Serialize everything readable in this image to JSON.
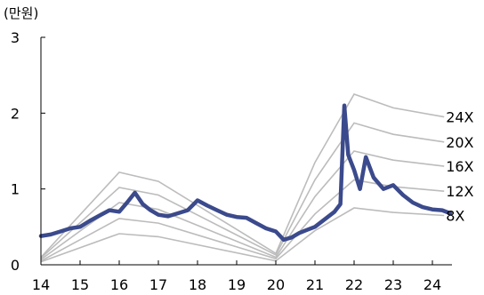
{
  "chart_data": {
    "type": "line",
    "title": "",
    "unit_label": "(만원)",
    "xlabel": "",
    "ylabel": "",
    "x_ticks": [
      "14",
      "15",
      "16",
      "17",
      "18",
      "19",
      "20",
      "21",
      "22",
      "23",
      "24"
    ],
    "y_ticks": [
      "0",
      "1",
      "2",
      "3"
    ],
    "xlim": [
      14,
      24.5
    ],
    "ylim": [
      0,
      3
    ],
    "grid": false,
    "legend": "none",
    "colors": {
      "price": "#3b4a8c",
      "band": "#bcbcbc",
      "axis": "#000000"
    },
    "price_series": {
      "name": "",
      "points": [
        [
          14.0,
          0.38
        ],
        [
          14.25,
          0.4
        ],
        [
          14.5,
          0.44
        ],
        [
          14.75,
          0.48
        ],
        [
          15.0,
          0.5
        ],
        [
          15.25,
          0.58
        ],
        [
          15.5,
          0.65
        ],
        [
          15.75,
          0.72
        ],
        [
          16.0,
          0.7
        ],
        [
          16.2,
          0.82
        ],
        [
          16.4,
          0.95
        ],
        [
          16.6,
          0.8
        ],
        [
          16.8,
          0.72
        ],
        [
          17.0,
          0.66
        ],
        [
          17.25,
          0.64
        ],
        [
          17.5,
          0.68
        ],
        [
          17.75,
          0.72
        ],
        [
          18.0,
          0.85
        ],
        [
          18.25,
          0.78
        ],
        [
          18.5,
          0.72
        ],
        [
          18.75,
          0.66
        ],
        [
          19.0,
          0.63
        ],
        [
          19.25,
          0.62
        ],
        [
          19.5,
          0.55
        ],
        [
          19.75,
          0.48
        ],
        [
          20.0,
          0.44
        ],
        [
          20.2,
          0.33
        ],
        [
          20.4,
          0.36
        ],
        [
          20.6,
          0.42
        ],
        [
          20.8,
          0.46
        ],
        [
          21.0,
          0.5
        ],
        [
          21.25,
          0.6
        ],
        [
          21.5,
          0.7
        ],
        [
          21.65,
          0.8
        ],
        [
          21.75,
          2.1
        ],
        [
          21.85,
          1.45
        ],
        [
          22.0,
          1.25
        ],
        [
          22.15,
          1.0
        ],
        [
          22.3,
          1.42
        ],
        [
          22.5,
          1.15
        ],
        [
          22.75,
          1.0
        ],
        [
          23.0,
          1.05
        ],
        [
          23.25,
          0.92
        ],
        [
          23.5,
          0.82
        ],
        [
          23.75,
          0.76
        ],
        [
          24.0,
          0.73
        ],
        [
          24.25,
          0.72
        ],
        [
          24.45,
          0.68
        ]
      ]
    },
    "bands": [
      {
        "label": "24X",
        "x": [
          14,
          16,
          17,
          20,
          21,
          22,
          23,
          24.3
        ],
        "y": [
          0.1,
          1.22,
          1.1,
          0.15,
          1.35,
          2.25,
          2.07,
          1.95
        ]
      },
      {
        "label": "20X",
        "x": [
          14,
          16,
          17,
          20,
          21,
          22,
          23,
          24.3
        ],
        "y": [
          0.09,
          1.02,
          0.92,
          0.13,
          1.12,
          1.87,
          1.72,
          1.62
        ]
      },
      {
        "label": "16X",
        "x": [
          14,
          16,
          17,
          20,
          21,
          22,
          23,
          24.3
        ],
        "y": [
          0.07,
          0.82,
          0.73,
          0.1,
          0.9,
          1.5,
          1.38,
          1.3
        ]
      },
      {
        "label": "12X",
        "x": [
          14,
          16,
          17,
          20,
          21,
          22,
          23,
          24.3
        ],
        "y": [
          0.05,
          0.61,
          0.55,
          0.08,
          0.67,
          1.12,
          1.03,
          0.97
        ]
      },
      {
        "label": "8X",
        "x": [
          14,
          16,
          17,
          20,
          21,
          22,
          23,
          24.3
        ],
        "y": [
          0.04,
          0.41,
          0.37,
          0.05,
          0.45,
          0.75,
          0.69,
          0.65
        ]
      }
    ]
  }
}
